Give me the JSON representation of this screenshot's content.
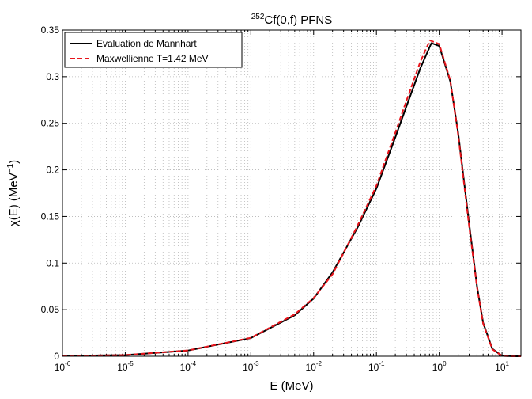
{
  "chart_data": {
    "type": "line",
    "title": {
      "sup": "252",
      "main": "Cf(0,f) PFNS"
    },
    "xlabel": "E (MeV)",
    "ylabel": {
      "main": "χ(E) (MeV",
      "sup": "−1",
      "close": ")"
    },
    "xscale": "log",
    "xlim": [
      1e-06,
      20
    ],
    "ylim": [
      0,
      0.35
    ],
    "grid": true,
    "legend_position": "top-left",
    "x_ticks": [
      {
        "base": "10",
        "exp": "-6",
        "value": 1e-06
      },
      {
        "base": "10",
        "exp": "-5",
        "value": 1e-05
      },
      {
        "base": "10",
        "exp": "-4",
        "value": 0.0001
      },
      {
        "base": "10",
        "exp": "-3",
        "value": 0.001
      },
      {
        "base": "10",
        "exp": "-2",
        "value": 0.01
      },
      {
        "base": "10",
        "exp": "-1",
        "value": 0.1
      },
      {
        "base": "10",
        "exp": "0",
        "value": 1
      },
      {
        "base": "10",
        "exp": "1",
        "value": 10
      }
    ],
    "y_ticks": [
      {
        "label": "0",
        "value": 0
      },
      {
        "label": "0.05",
        "value": 0.05
      },
      {
        "label": "0.1",
        "value": 0.1
      },
      {
        "label": "0.15",
        "value": 0.15
      },
      {
        "label": "0.2",
        "value": 0.2
      },
      {
        "label": "0.25",
        "value": 0.25
      },
      {
        "label": "0.3",
        "value": 0.3
      },
      {
        "label": "0.35",
        "value": 0.35
      }
    ],
    "series": [
      {
        "name": "Evaluation de Mannhart",
        "color": "#000000",
        "dash": "solid",
        "x": [
          1e-06,
          1e-05,
          0.0001,
          0.001,
          0.005,
          0.01,
          0.02,
          0.05,
          0.1,
          0.2,
          0.3,
          0.5,
          0.75,
          1.0,
          1.5,
          2.0,
          3.0,
          4.0,
          5.0,
          7.0,
          10.0,
          15.0,
          20.0
        ],
        "y": [
          0.0004,
          0.0013,
          0.0062,
          0.0195,
          0.044,
          0.062,
          0.09,
          0.138,
          0.18,
          0.235,
          0.268,
          0.309,
          0.336,
          0.333,
          0.295,
          0.24,
          0.142,
          0.075,
          0.036,
          0.008,
          0.0005,
          0.0,
          0.0
        ]
      },
      {
        "name": "Maxwellienne T=1.42 MeV",
        "color": "#e8141b",
        "dash": "dashed",
        "x": [
          1e-06,
          1e-05,
          0.0001,
          0.001,
          0.005,
          0.01,
          0.02,
          0.05,
          0.1,
          0.2,
          0.3,
          0.5,
          0.71,
          1.0,
          1.5,
          2.0,
          3.0,
          4.0,
          5.0,
          7.0,
          10.0,
          15.0,
          20.0
        ],
        "y": [
          0.0004,
          0.0013,
          0.0063,
          0.0198,
          0.045,
          0.0625,
          0.088,
          0.14,
          0.183,
          0.24,
          0.274,
          0.316,
          0.339,
          0.335,
          0.296,
          0.238,
          0.139,
          0.074,
          0.035,
          0.0075,
          0.0004,
          0.0,
          0.0
        ]
      }
    ]
  }
}
